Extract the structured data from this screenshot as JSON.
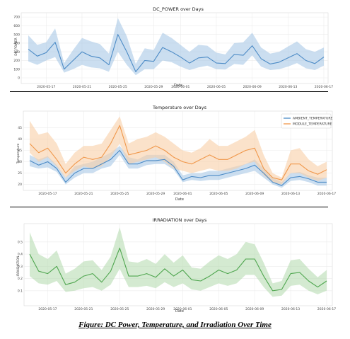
{
  "chart_data": [
    {
      "type": "line",
      "title": "DC_POWER over Days",
      "xlabel": "Date",
      "ylabel": "DC_POWER",
      "ylim": [
        0,
        750
      ],
      "yticks": [
        0,
        100,
        200,
        300,
        400,
        500,
        600,
        700
      ],
      "xtick_labels": [
        "2020-05-17",
        "2020-05-21",
        "2020-05-25",
        "2020-05-29",
        "2020-06-01",
        "2020-06-05",
        "2020-06-09",
        "2020-06-13",
        "2020-06-17"
      ],
      "xtick_index": [
        2,
        6,
        10,
        14,
        17,
        21,
        25,
        29,
        33
      ],
      "x": [
        "2020-05-15",
        "2020-05-16",
        "2020-05-17",
        "2020-05-18",
        "2020-05-19",
        "2020-05-20",
        "2020-05-21",
        "2020-05-22",
        "2020-05-23",
        "2020-05-24",
        "2020-05-25",
        "2020-05-26",
        "2020-05-27",
        "2020-05-28",
        "2020-05-29",
        "2020-05-30",
        "2020-05-31",
        "2020-06-01",
        "2020-06-02",
        "2020-06-03",
        "2020-06-04",
        "2020-06-05",
        "2020-06-06",
        "2020-06-07",
        "2020-06-08",
        "2020-06-09",
        "2020-06-10",
        "2020-06-11",
        "2020-06-12",
        "2020-06-13",
        "2020-06-14",
        "2020-06-15",
        "2020-06-16",
        "2020-06-17"
      ],
      "series": [
        {
          "name": "DC_POWER",
          "color": "#4c8bc6",
          "band_color": "#a9c8e6",
          "values": [
            330,
            250,
            290,
            410,
            100,
            200,
            300,
            250,
            230,
            150,
            500,
            300,
            70,
            200,
            190,
            350,
            300,
            240,
            170,
            230,
            240,
            170,
            165,
            270,
            260,
            370,
            220,
            160,
            180,
            230,
            280,
            200,
            165,
            240
          ],
          "lower": [
            190,
            150,
            200,
            240,
            60,
            100,
            150,
            120,
            110,
            70,
            300,
            150,
            30,
            100,
            100,
            200,
            180,
            130,
            90,
            120,
            140,
            100,
            95,
            160,
            150,
            260,
            130,
            90,
            100,
            130,
            170,
            110,
            90,
            140
          ],
          "upper": [
            490,
            380,
            410,
            570,
            170,
            320,
            460,
            420,
            390,
            280,
            690,
            480,
            160,
            340,
            320,
            520,
            460,
            380,
            300,
            380,
            370,
            290,
            270,
            400,
            410,
            520,
            350,
            280,
            300,
            360,
            420,
            330,
            300,
            350
          ]
        }
      ]
    },
    {
      "type": "line",
      "title": "Temperature over Days",
      "xlabel": "Date",
      "ylabel": "Temperature",
      "ylim": [
        18,
        52
      ],
      "yticks": [
        20,
        25,
        30,
        35,
        40,
        45
      ],
      "xtick_labels": [
        "2020-05-17",
        "2020-05-21",
        "2020-05-25",
        "2020-05-29",
        "2020-06-01",
        "2020-06-05",
        "2020-06-09",
        "2020-06-13",
        "2020-06-17"
      ],
      "xtick_index": [
        2,
        6,
        10,
        14,
        17,
        21,
        25,
        29,
        33
      ],
      "legend": "top-right",
      "series": [
        {
          "name": "AMBIENT_TEMPERATURE",
          "color": "#4c8bc6",
          "band_color": "#a9c8e6",
          "values": [
            30.5,
            28.5,
            30,
            27,
            21,
            25,
            27,
            27,
            29,
            31,
            35,
            29,
            29,
            30.5,
            30.5,
            31,
            28,
            22,
            23.5,
            23,
            24,
            24,
            25,
            26,
            27,
            28.5,
            25,
            21,
            19.5,
            23,
            23.5,
            22.5,
            21,
            21
          ],
          "lower": [
            28,
            27,
            27.5,
            25.5,
            20,
            23,
            25,
            25,
            27,
            28,
            33,
            27,
            27,
            28.5,
            29,
            29,
            26.5,
            21,
            22,
            21.5,
            22,
            22,
            23,
            24,
            25,
            26,
            23,
            20,
            18.5,
            21.5,
            22,
            21,
            19.5,
            19.5
          ],
          "upper": [
            33,
            31,
            32.5,
            28.5,
            23,
            28,
            29,
            30,
            32,
            34,
            37,
            32,
            31,
            33,
            33,
            33,
            30,
            24,
            25,
            25,
            26,
            26,
            27,
            28,
            29,
            31,
            27,
            23,
            21,
            25,
            25.5,
            24,
            23,
            23
          ]
        },
        {
          "name": "MODULE_TEMPERATURE",
          "color": "#f0974a",
          "band_color": "#f9cfa6",
          "values": [
            38,
            34,
            36,
            31,
            25,
            29,
            32,
            31,
            32,
            38,
            46,
            33,
            34,
            35,
            37,
            35,
            32,
            30,
            29,
            31,
            33,
            31,
            31,
            33,
            35,
            36,
            27,
            23,
            22,
            29,
            29,
            26,
            24.5,
            26.5
          ],
          "lower": [
            34,
            30,
            32,
            28,
            23,
            26,
            28,
            27,
            28,
            32,
            38,
            29,
            30,
            31,
            32,
            30,
            27,
            26,
            25,
            26,
            27,
            26,
            26,
            27,
            29,
            30,
            24,
            21,
            20,
            25,
            25,
            23,
            21.5,
            23
          ],
          "upper": [
            48,
            42,
            43,
            38,
            29,
            34,
            37,
            37,
            38,
            44,
            50,
            38,
            40,
            41,
            43,
            41,
            38,
            35,
            34,
            36,
            40,
            37,
            37,
            39,
            41,
            44,
            33,
            25,
            23,
            35,
            36,
            31,
            28,
            30
          ]
        }
      ]
    },
    {
      "type": "line",
      "title": "IRRADIATION over Days",
      "xlabel": "Date",
      "ylabel": "IRRADIATION",
      "ylim": [
        0.0,
        0.65
      ],
      "yticks": [
        0.1,
        0.2,
        0.3,
        0.4,
        0.5
      ],
      "xtick_labels": [
        "2020-05-17",
        "2020-05-21",
        "2020-05-25",
        "2020-05-29",
        "2020-06-01",
        "2020-06-05",
        "2020-06-09",
        "2020-06-13",
        "2020-06-17"
      ],
      "xtick_index": [
        2,
        6,
        10,
        14,
        17,
        21,
        25,
        29,
        33
      ],
      "series": [
        {
          "name": "IRRADIATION",
          "color": "#4fa64f",
          "band_color": "#b7dcb2",
          "values": [
            0.4,
            0.26,
            0.24,
            0.3,
            0.15,
            0.17,
            0.22,
            0.24,
            0.17,
            0.26,
            0.45,
            0.22,
            0.22,
            0.24,
            0.21,
            0.28,
            0.22,
            0.27,
            0.19,
            0.18,
            0.22,
            0.27,
            0.24,
            0.27,
            0.36,
            0.36,
            0.22,
            0.1,
            0.11,
            0.24,
            0.25,
            0.18,
            0.13,
            0.18
          ],
          "lower": [
            0.22,
            0.16,
            0.15,
            0.18,
            0.09,
            0.1,
            0.12,
            0.13,
            0.1,
            0.15,
            0.28,
            0.13,
            0.13,
            0.14,
            0.12,
            0.17,
            0.13,
            0.16,
            0.11,
            0.1,
            0.13,
            0.16,
            0.14,
            0.16,
            0.23,
            0.23,
            0.13,
            0.05,
            0.06,
            0.14,
            0.15,
            0.1,
            0.07,
            0.1
          ],
          "upper": [
            0.58,
            0.4,
            0.36,
            0.43,
            0.24,
            0.28,
            0.34,
            0.35,
            0.27,
            0.38,
            0.62,
            0.34,
            0.33,
            0.36,
            0.32,
            0.4,
            0.33,
            0.39,
            0.29,
            0.28,
            0.34,
            0.39,
            0.36,
            0.4,
            0.5,
            0.48,
            0.33,
            0.16,
            0.18,
            0.35,
            0.36,
            0.28,
            0.21,
            0.27
          ]
        }
      ]
    }
  ],
  "caption": "Figure: DC Power, Temperature, and Irradiation Over Time"
}
